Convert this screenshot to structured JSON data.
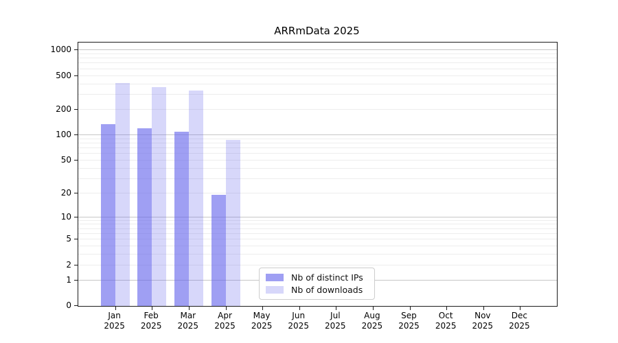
{
  "title": "ARRmData 2025",
  "chart_data": {
    "type": "bar",
    "title": "ARRmData 2025",
    "categories": [
      "Jan",
      "Feb",
      "Mar",
      "Apr",
      "May",
      "Jun",
      "Jul",
      "Aug",
      "Sep",
      "Oct",
      "Nov",
      "Dec"
    ],
    "x_tick_year": "2025",
    "series": [
      {
        "name": "Nb of distinct IPs",
        "color": "rgba(100,100,235,0.62)",
        "values": [
          134,
          121,
          110,
          19,
          0,
          0,
          0,
          0,
          0,
          0,
          0,
          0
        ]
      },
      {
        "name": "Nb of downloads",
        "color": "rgba(100,100,235,0.26)",
        "values": [
          413,
          369,
          337,
          87,
          0,
          0,
          0,
          0,
          0,
          0,
          0,
          0
        ]
      }
    ],
    "y_ticks": [
      0,
      1,
      2,
      5,
      10,
      20,
      50,
      100,
      200,
      500,
      1000
    ],
    "y_scale": "symlog-ln(1+v)",
    "y_max": 1230,
    "ylim": [
      0,
      1230
    ],
    "grid": true,
    "legend_position": "inside-bottom-center",
    "colors": {
      "major_grid": "#c6c6c6",
      "minor_grid": "#ededed",
      "axis": "#1a1a1a",
      "background": "#ffffff"
    }
  }
}
